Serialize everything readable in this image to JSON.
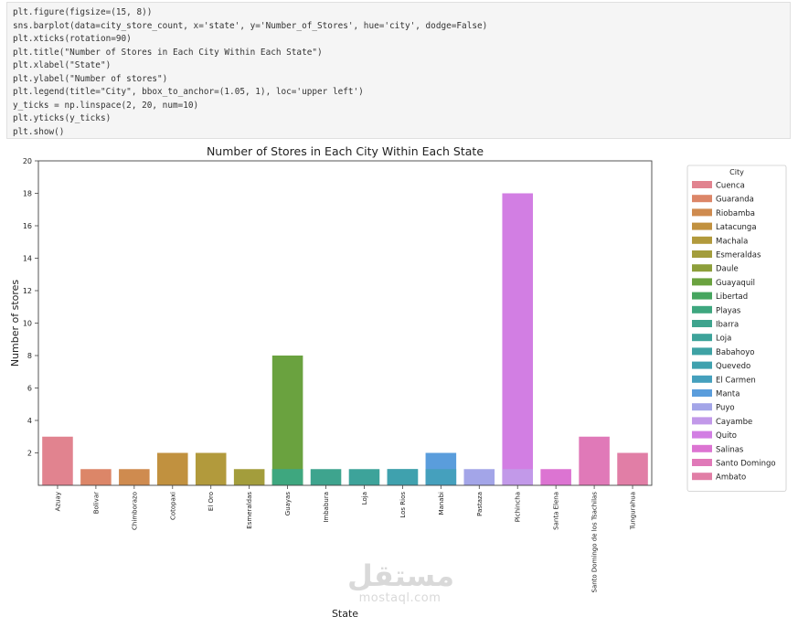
{
  "code": {
    "lines": [
      "plt.figure(figsize=(15, 8))",
      "sns.barplot(data=city_store_count, x='state', y='Number_of_Stores', hue='city', dodge=False)",
      "plt.xticks(rotation=90)",
      "plt.title(\"Number of Stores in Each City Within Each State\")",
      "plt.xlabel(\"State\")",
      "plt.ylabel(\"Number of stores\")",
      "plt.legend(title=\"City\", bbox_to_anchor=(1.05, 1), loc='upper left')",
      "y_ticks = np.linspace(2, 20, num=10)",
      "plt.yticks(y_ticks)",
      "plt.show()"
    ]
  },
  "watermark": {
    "arabic": "مستقل",
    "latin": "mostaql.com"
  },
  "chart_data": {
    "type": "bar",
    "title": "Number of Stores in Each City Within Each State",
    "xlabel": "State",
    "ylabel": "Number of stores",
    "ylim": [
      0,
      20
    ],
    "yticks": [
      2,
      4,
      6,
      8,
      10,
      12,
      14,
      16,
      18,
      20
    ],
    "grid": false,
    "legend_placement": "outside-right",
    "legend_title": "City",
    "categories": [
      "Azuay",
      "Bolivar",
      "Chimborazo",
      "Cotopaxi",
      "El Oro",
      "Esmeraldas",
      "Guayas",
      "Imbabura",
      "Loja",
      "Los Rios",
      "Manabi",
      "Pastaza",
      "Pichincha",
      "Santa Elena",
      "Santo Domingo de los Tsachilas",
      "Tungurahua"
    ],
    "series": [
      {
        "name": "Cuenca",
        "color": "#e1838f",
        "values": {
          "Azuay": 3
        }
      },
      {
        "name": "Guaranda",
        "color": "#dc8668",
        "values": {
          "Bolivar": 1
        }
      },
      {
        "name": "Riobamba",
        "color": "#cf8b4f",
        "values": {
          "Chimborazo": 1
        }
      },
      {
        "name": "Latacunga",
        "color": "#c1913f",
        "values": {
          "Cotopaxi": 2
        }
      },
      {
        "name": "Machala",
        "color": "#b29a3c",
        "values": {
          "El Oro": 2
        }
      },
      {
        "name": "Esmeraldas",
        "color": "#a39d3c",
        "values": {
          "Esmeraldas": 1
        }
      },
      {
        "name": "Daule",
        "color": "#8d9f3b",
        "values": {
          "Guayas": 1
        }
      },
      {
        "name": "Guayaquil",
        "color": "#6aa23f",
        "values": {
          "Guayas": 8
        }
      },
      {
        "name": "Libertad",
        "color": "#46a55f",
        "values": {
          "Guayas": 1
        }
      },
      {
        "name": "Playas",
        "color": "#3ea77f",
        "values": {
          "Guayas": 1
        }
      },
      {
        "name": "Ibarra",
        "color": "#3ea48e",
        "values": {
          "Imbabura": 1
        }
      },
      {
        "name": "Loja",
        "color": "#3da39a",
        "values": {
          "Loja": 1
        }
      },
      {
        "name": "Babahoyo",
        "color": "#3ea2a4",
        "values": {
          "Los Rios": 1
        }
      },
      {
        "name": "Quevedo",
        "color": "#3fa1ae",
        "values": {
          "Los Rios": 1
        }
      },
      {
        "name": "El Carmen",
        "color": "#45a0bd",
        "values": {
          "Manabi": 1
        }
      },
      {
        "name": "Manta",
        "color": "#5a9ddc",
        "values": {
          "Manabi": 2
        }
      },
      {
        "name": "Puyo",
        "color": "#a3a5e8",
        "values": {
          "Pastaza": 1
        }
      },
      {
        "name": "Cayambe",
        "color": "#c299e9",
        "values": {
          "Pichincha": 1
        }
      },
      {
        "name": "Quito",
        "color": "#d27ee3",
        "values": {
          "Pichincha": 18
        }
      },
      {
        "name": "Salinas",
        "color": "#dc74d2",
        "values": {
          "Santa Elena": 1
        }
      },
      {
        "name": "Santo Domingo",
        "color": "#e079b8",
        "values": {
          "Santo Domingo de los Tsachilas": 3
        }
      },
      {
        "name": "Ambato",
        "color": "#e17ea6",
        "values": {
          "Tungurahua": 2
        }
      }
    ]
  }
}
